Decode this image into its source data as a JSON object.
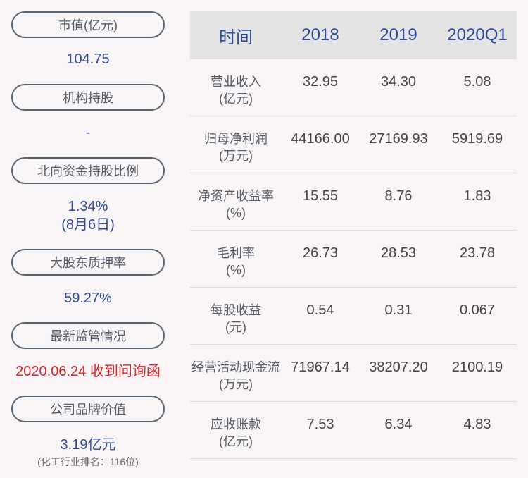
{
  "left_panel": {
    "items": [
      {
        "label": "市值(亿元)",
        "value": "104.75"
      },
      {
        "label": "机构持股",
        "value": "-"
      },
      {
        "label": "北向资金持股比例",
        "value": "1.34%",
        "value2": "(8月6日)"
      },
      {
        "label": "大股东质押率",
        "value": "59.27%"
      },
      {
        "label": "最新监管情况",
        "value": "2020.06.24 收到问询函"
      },
      {
        "label": "公司品牌价值",
        "value": "3.19亿元",
        "note": "(化工行业排名：116位)"
      }
    ]
  },
  "table": {
    "headers": [
      "时间",
      "2018",
      "2019",
      "2020Q1"
    ],
    "rows": [
      {
        "label": "营业收入",
        "unit": "(亿元)",
        "values": [
          "32.95",
          "34.30",
          "5.08"
        ]
      },
      {
        "label": "归母净利润",
        "unit": "(万元)",
        "values": [
          "44166.00",
          "27169.93",
          "5919.69"
        ]
      },
      {
        "label": "净资产收益率",
        "unit": "(%)",
        "values": [
          "15.55",
          "8.76",
          "1.83"
        ]
      },
      {
        "label": "毛利率",
        "unit": "(%)",
        "values": [
          "26.73",
          "28.53",
          "23.78"
        ]
      },
      {
        "label": "每股收益",
        "unit": "(元)",
        "values": [
          "0.54",
          "0.31",
          "0.067"
        ]
      },
      {
        "label": "经营活动现金流",
        "unit": "(万元)",
        "values": [
          "71967.14",
          "38207.20",
          "2100.19"
        ]
      },
      {
        "label": "应收账款",
        "unit": "(亿元)",
        "values": [
          "7.53",
          "6.34",
          "4.83"
        ]
      }
    ]
  },
  "colors": {
    "accent": "#2d4b9a",
    "alert": "#e0222a",
    "background": "#f9f5f6",
    "header_bg": "#e4e4e4"
  }
}
